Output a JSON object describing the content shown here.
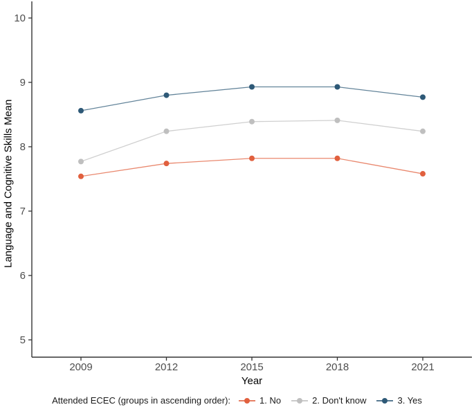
{
  "chart_data": {
    "type": "line",
    "x": [
      2009,
      2012,
      2015,
      2018,
      2021
    ],
    "xlabel": "Year",
    "ylabel": "Language and Cognitive Skills Mean",
    "ylim": [
      5,
      10
    ],
    "yticks": [
      5,
      6,
      7,
      8,
      9,
      10
    ],
    "grid": false,
    "legend": {
      "title": "Attended ECEC (groups in ascending order):",
      "position": "bottom"
    },
    "series": [
      {
        "name": "1. No",
        "color": "#E1603E",
        "values": [
          7.54,
          7.74,
          7.82,
          7.82,
          7.58
        ]
      },
      {
        "name": "2. Don't know",
        "color": "#BFBFBF",
        "values": [
          7.77,
          8.24,
          8.39,
          8.41,
          8.24
        ]
      },
      {
        "name": "3. Yes",
        "color": "#2E5977",
        "values": [
          8.56,
          8.8,
          8.93,
          8.93,
          8.77
        ]
      }
    ]
  },
  "colors": {
    "axis_line": "#333333",
    "tick_label": "#4d4d4d",
    "axis_title": "#000000",
    "background": "#ffffff"
  }
}
